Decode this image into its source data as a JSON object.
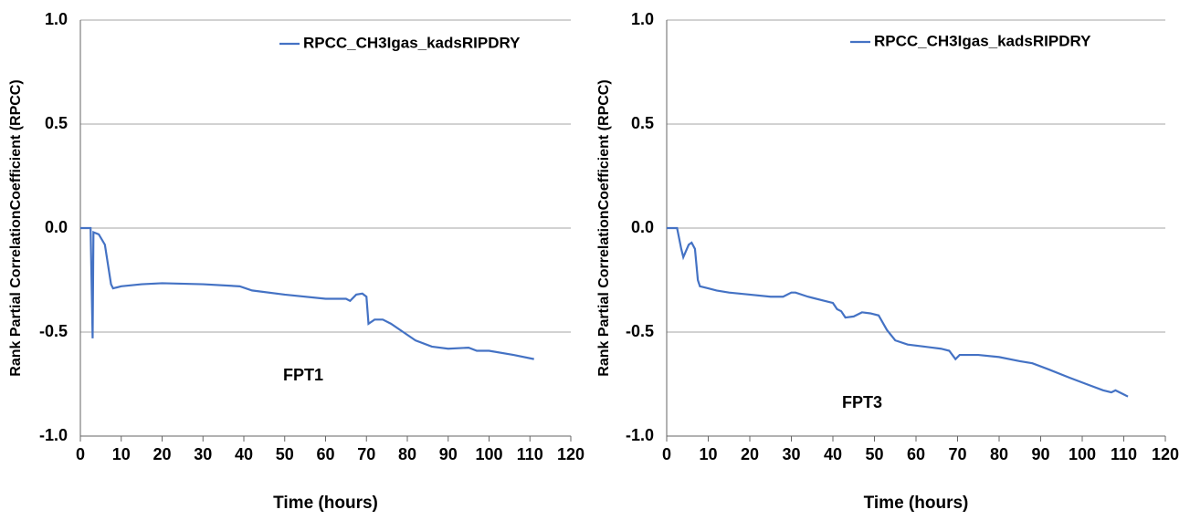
{
  "chart_data": [
    {
      "type": "line",
      "x_label": "Time (hours)",
      "y_label": "Rank Partial CorrelationCoefficient (RPCC)",
      "annotation": "FPT1",
      "legend": "top",
      "grid": true,
      "xlim": [
        0,
        120
      ],
      "xticks": [
        0,
        10,
        20,
        30,
        40,
        50,
        60,
        70,
        80,
        90,
        100,
        110,
        120
      ],
      "ylim": [
        -1,
        1
      ],
      "yticks": [
        {
          "value": -1,
          "label": "-1.0"
        },
        {
          "value": -0.5,
          "label": "-0.5"
        },
        {
          "value": 0,
          "label": "0.0"
        },
        {
          "value": 0.5,
          "label": "0.5"
        },
        {
          "value": 1,
          "label": "1.0"
        }
      ],
      "x": [
        0,
        2.5,
        3,
        3.2,
        4.5,
        6,
        7.5,
        8,
        10,
        15,
        20,
        30,
        39,
        42,
        50,
        60,
        65,
        66,
        67.5,
        69,
        70,
        70.5,
        72,
        74,
        76,
        79,
        82,
        86,
        90,
        95,
        97,
        100,
        106,
        111
      ],
      "series": [
        {
          "name": "RPCC_CH3Igas_kadsRIPDRY",
          "color": "#4472c4",
          "values": [
            0,
            0,
            -0.53,
            -0.02,
            -0.03,
            -0.08,
            -0.27,
            -0.29,
            -0.28,
            -0.27,
            -0.265,
            -0.27,
            -0.28,
            -0.3,
            -0.32,
            -0.34,
            -0.34,
            -0.35,
            -0.32,
            -0.315,
            -0.33,
            -0.46,
            -0.44,
            -0.44,
            -0.46,
            -0.5,
            -0.54,
            -0.57,
            -0.58,
            -0.575,
            -0.59,
            -0.59,
            -0.61,
            -0.63
          ]
        }
      ]
    },
    {
      "type": "line",
      "x_label": "Time (hours)",
      "y_label": "Rank Partial CorrelationCoefficient (RPCC)",
      "annotation": "FPT3",
      "legend": "top",
      "grid": true,
      "xlim": [
        0,
        120
      ],
      "xticks": [
        0,
        10,
        20,
        30,
        40,
        50,
        60,
        70,
        80,
        90,
        100,
        110,
        120
      ],
      "ylim": [
        -1,
        1
      ],
      "yticks": [
        {
          "value": -1,
          "label": "-1.0"
        },
        {
          "value": -0.5,
          "label": "-0.5"
        },
        {
          "value": 0,
          "label": "0.0"
        },
        {
          "value": 0.5,
          "label": "0.5"
        },
        {
          "value": 1,
          "label": "1.0"
        }
      ],
      "x": [
        0,
        2.5,
        3.5,
        4,
        5.3,
        6,
        6.8,
        7.5,
        8,
        10,
        12,
        15,
        20,
        25,
        28,
        30,
        31,
        34,
        38,
        40,
        41,
        42,
        43,
        45,
        47,
        49,
        51,
        53,
        55,
        58,
        62,
        66,
        68,
        69.5,
        70.5,
        75,
        80,
        85,
        88,
        92,
        97,
        101,
        105,
        107,
        108,
        110,
        111
      ],
      "series": [
        {
          "name": "RPCC_CH3Igas_kadsRIPDRY",
          "color": "#4472c4",
          "values": [
            0,
            0,
            -0.1,
            -0.14,
            -0.08,
            -0.07,
            -0.1,
            -0.25,
            -0.28,
            -0.29,
            -0.3,
            -0.31,
            -0.32,
            -0.33,
            -0.33,
            -0.31,
            -0.31,
            -0.33,
            -0.35,
            -0.36,
            -0.39,
            -0.4,
            -0.43,
            -0.425,
            -0.405,
            -0.41,
            -0.42,
            -0.49,
            -0.54,
            -0.56,
            -0.57,
            -0.58,
            -0.59,
            -0.63,
            -0.61,
            -0.61,
            -0.62,
            -0.64,
            -0.65,
            -0.68,
            -0.72,
            -0.75,
            -0.78,
            -0.79,
            -0.78,
            -0.8,
            -0.81
          ]
        }
      ]
    }
  ]
}
